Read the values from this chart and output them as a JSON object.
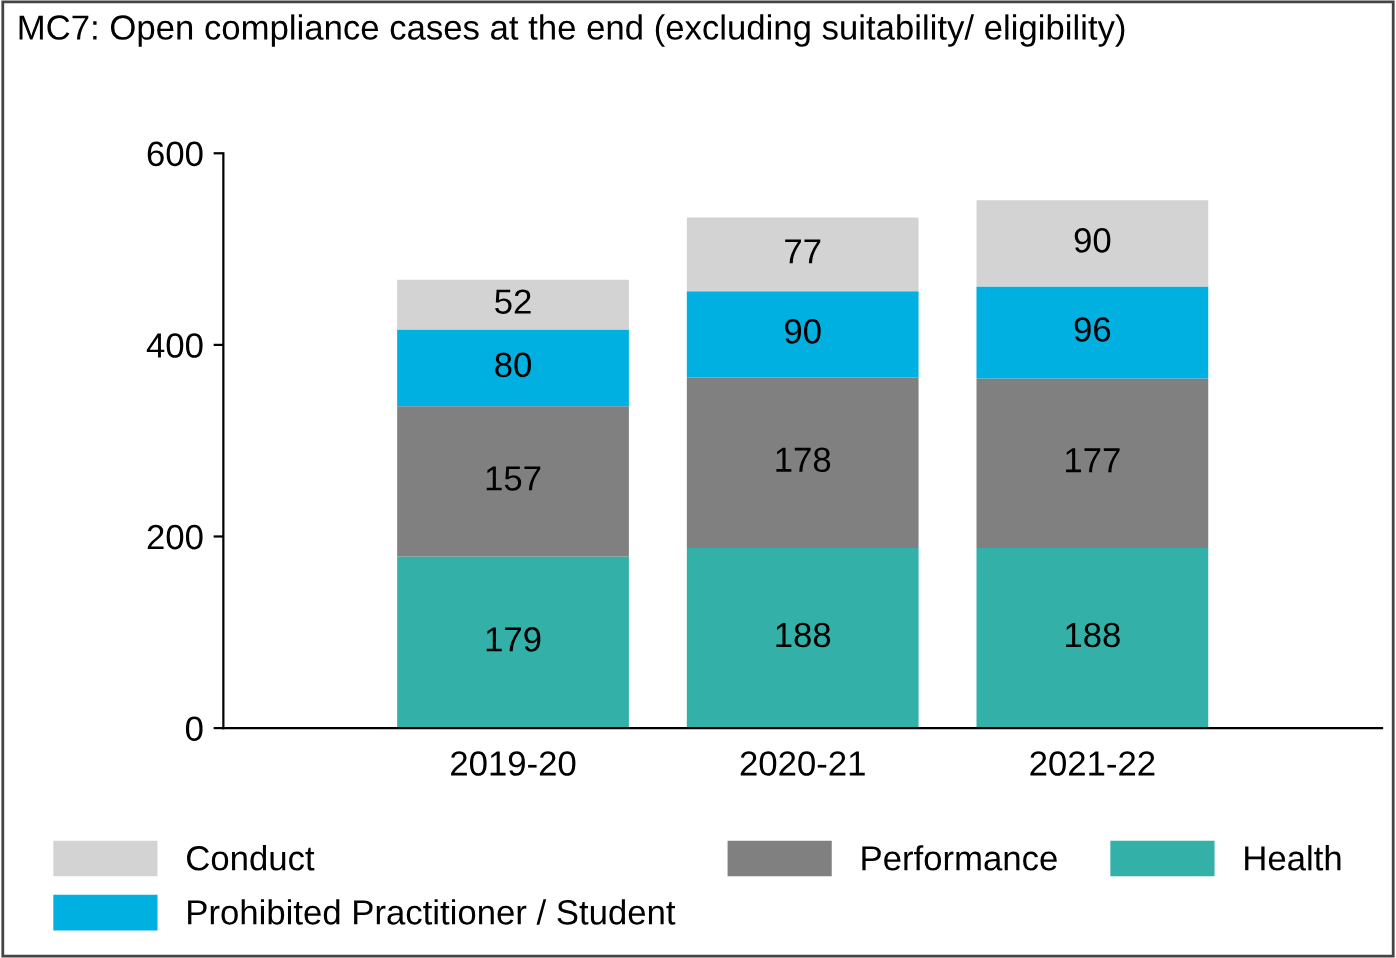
{
  "chart_data": {
    "type": "bar",
    "stacked": true,
    "title": "MC7: Open compliance cases at the end (excluding suitability/ eligibility)",
    "categories": [
      "2019-20",
      "2020-21",
      "2021-22"
    ],
    "series": [
      {
        "name": "Health",
        "color": "#33b0a8",
        "values": [
          179,
          188,
          188
        ]
      },
      {
        "name": "Performance",
        "color": "#808080",
        "values": [
          157,
          178,
          177
        ]
      },
      {
        "name": "Prohibited Practitioner / Student",
        "color": "#00b0e0",
        "values": [
          80,
          90,
          96
        ]
      },
      {
        "name": "Conduct",
        "color": "#d3d3d3",
        "values": [
          52,
          77,
          90
        ]
      }
    ],
    "ylim": [
      0,
      600
    ],
    "yticks": [
      0,
      200,
      400,
      600
    ],
    "data_labels": true,
    "grid": false,
    "legend": "bottom"
  }
}
